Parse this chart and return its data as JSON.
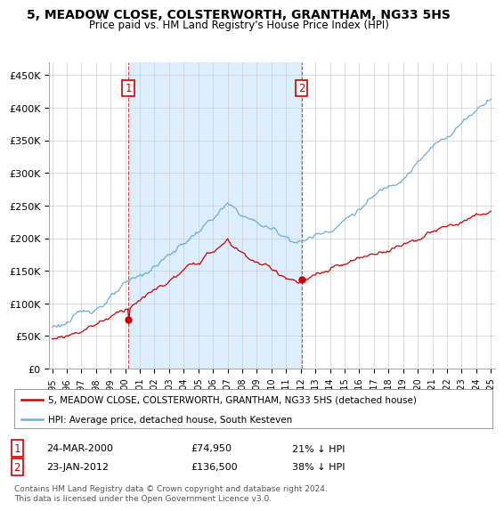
{
  "title": "5, MEADOW CLOSE, COLSTERWORTH, GRANTHAM, NG33 5HS",
  "subtitle": "Price paid vs. HM Land Registry's House Price Index (HPI)",
  "ylim": [
    0,
    470000
  ],
  "yticks": [
    0,
    50000,
    100000,
    150000,
    200000,
    250000,
    300000,
    350000,
    400000,
    450000
  ],
  "ytick_labels": [
    "£0",
    "£50K",
    "£100K",
    "£150K",
    "£200K",
    "£250K",
    "£300K",
    "£350K",
    "£400K",
    "£450K"
  ],
  "hpi_color": "#6baed6",
  "price_color": "#cc0000",
  "shade_color": "#ddeeff",
  "legend_label1": "5, MEADOW CLOSE, COLSTERWORTH, GRANTHAM, NG33 5HS (detached house)",
  "legend_label2": "HPI: Average price, detached house, South Kesteven",
  "footer": "Contains HM Land Registry data © Crown copyright and database right 2024.\nThis data is licensed under the Open Government Licence v3.0.",
  "background_color": "#ffffff",
  "plot_bg_color": "#ffffff",
  "grid_color": "#cccccc",
  "year1": 2000.21,
  "year2": 2012.05,
  "price1": 74950,
  "price2": 136500
}
